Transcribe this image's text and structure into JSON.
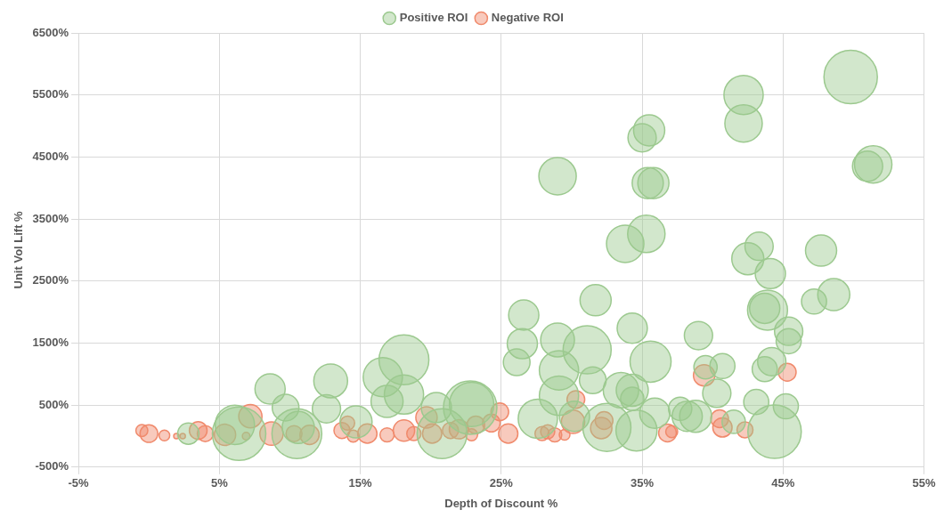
{
  "chart_data": {
    "type": "bubble",
    "xlabel": "Depth of Discount %",
    "ylabel": "Unit Vol Lift %",
    "legend": "top",
    "grid": true,
    "xlim": [
      -5,
      55
    ],
    "xticks": [
      {
        "value": -5,
        "label": "-5%"
      },
      {
        "value": 5,
        "label": "5%"
      },
      {
        "value": 15,
        "label": "15%"
      },
      {
        "value": 25,
        "label": "25%"
      },
      {
        "value": 35,
        "label": "35%"
      },
      {
        "value": 45,
        "label": "45%"
      },
      {
        "value": 55,
        "label": "55%"
      }
    ],
    "ylim": [
      -500,
      6500
    ],
    "yticks": [
      {
        "value": -500,
        "label": "-500%"
      },
      {
        "value": 500,
        "label": "500%"
      },
      {
        "value": 1500,
        "label": "1500%"
      },
      {
        "value": 2500,
        "label": "2500%"
      },
      {
        "value": 3500,
        "label": "3500%"
      },
      {
        "value": 4500,
        "label": "4500%"
      },
      {
        "value": 5500,
        "label": "5500%"
      },
      {
        "value": 6500,
        "label": "6500%"
      }
    ],
    "series": [
      {
        "name": "Positive ROI",
        "color": "#9cc98f",
        "x": [
          49.8,
          42.2,
          42.2,
          35.5,
          35.0,
          29.0,
          35.8,
          35.4,
          51.4,
          51.0,
          35.3,
          33.8,
          43.3,
          42.5,
          47.7,
          44.1,
          31.7,
          47.2,
          48.6,
          43.9,
          43.7,
          45.4,
          45.4,
          34.3,
          39.0,
          31.1,
          29.0,
          29.1,
          35.6,
          26.6,
          26.5,
          26.1,
          31.5,
          44.2,
          43.7,
          40.7,
          39.5,
          29.1,
          33.5,
          34.3,
          34.3,
          35.9,
          37.7,
          40.3,
          38.8,
          43.1,
          45.2,
          44.4,
          22.9,
          27.6,
          32.5,
          34.6,
          30.2,
          38.2,
          41.5,
          8.6,
          12.9,
          12.6,
          9.7,
          16.6,
          18.1,
          18.1,
          16.9,
          6.1,
          10.6,
          14.7,
          2.8,
          20.4,
          6.4,
          10.5,
          20.8,
          22.8
        ],
        "values": [
          5790,
          5500,
          5040,
          4930,
          4810,
          4190,
          4080,
          4080,
          4380,
          4350,
          3260,
          3100,
          3060,
          2860,
          2990,
          2620,
          2190,
          2170,
          2280,
          2030,
          2060,
          1690,
          1530,
          1740,
          1620,
          1390,
          1550,
          1060,
          1200,
          1950,
          1490,
          1190,
          900,
          1200,
          1080,
          1130,
          1110,
          650,
          740,
          740,
          600,
          370,
          440,
          690,
          320,
          550,
          480,
          70,
          510,
          280,
          140,
          90,
          320,
          320,
          230,
          760,
          890,
          440,
          460,
          950,
          1230,
          670,
          560,
          180,
          140,
          230,
          40,
          460,
          40,
          40,
          40,
          460
        ],
        "sizes": [
          1,
          0.54,
          0.49,
          0.34,
          0.28,
          0.49,
          0.34,
          0.34,
          0.49,
          0.32,
          0.49,
          0.49,
          0.28,
          0.36,
          0.34,
          0.32,
          0.34,
          0.22,
          0.36,
          0.56,
          0.32,
          0.28,
          0.22,
          0.32,
          0.28,
          0.81,
          0.4,
          0.54,
          0.59,
          0.32,
          0.32,
          0.25,
          0.25,
          0.28,
          0.22,
          0.22,
          0.19,
          0.54,
          0.44,
          0.36,
          0.19,
          0.32,
          0.19,
          0.28,
          0.36,
          0.22,
          0.22,
          1,
          0.69,
          0.54,
          0.81,
          0.59,
          0.32,
          0.32,
          0.19,
          0.32,
          0.4,
          0.28,
          0.25,
          0.54,
          0.87,
          0.54,
          0.36,
          0.54,
          0.36,
          0.36,
          0.16,
          0.32,
          1,
          0.87,
          0.87,
          1
        ]
      },
      {
        "name": "Negative ROI",
        "color": "#f08a6c",
        "x": [
          0,
          -0.5,
          1.1,
          1.95,
          2.4,
          3.5,
          4.0,
          5.4,
          7.2,
          6.9,
          8.7,
          10.3,
          11.4,
          13.7,
          14.1,
          14.5,
          15.5,
          16.9,
          18.1,
          18.8,
          19.7,
          20.1,
          21.4,
          22.0,
          22.9,
          23.2,
          24.3,
          24.9,
          25.5,
          27.9,
          28.3,
          28.8,
          29.5,
          30.3,
          30.1,
          32.3,
          32.1,
          36.8,
          37.1,
          39.4,
          40.5,
          40.7,
          42.3,
          45.3
        ],
        "values": [
          40,
          90,
          10,
          0,
          0,
          90,
          40,
          20,
          320,
          0,
          40,
          40,
          20,
          90,
          210,
          0,
          40,
          20,
          90,
          40,
          300,
          40,
          90,
          110,
          20,
          180,
          210,
          390,
          40,
          40,
          70,
          20,
          20,
          590,
          230,
          250,
          130,
          50,
          70,
          980,
          280,
          140,
          100,
          1030
        ],
        "sizes": [
          0.11,
          0.05,
          0.04,
          0.01,
          0.01,
          0.11,
          0.09,
          0.16,
          0.19,
          0.02,
          0.19,
          0.09,
          0.13,
          0.09,
          0.07,
          0.05,
          0.13,
          0.07,
          0.16,
          0.07,
          0.16,
          0.13,
          0.09,
          0.13,
          0.05,
          0.11,
          0.11,
          0.11,
          0.13,
          0.07,
          0.07,
          0.07,
          0.04,
          0.11,
          0.19,
          0.11,
          0.16,
          0.11,
          0.05,
          0.16,
          0.11,
          0.13,
          0.09,
          0.11
        ]
      }
    ]
  }
}
